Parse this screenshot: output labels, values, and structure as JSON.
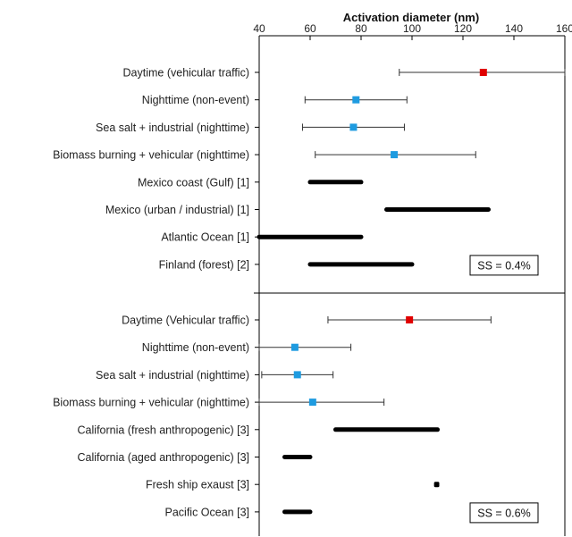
{
  "chart_data": {
    "type": "range",
    "xlabel": "Activation diameter (nm)",
    "xlim": [
      40,
      160
    ],
    "xticks": [
      40,
      60,
      80,
      100,
      120,
      140,
      160
    ],
    "panels": [
      {
        "annotation": "SS = 0.4%",
        "rows": [
          {
            "label": "Daytime (vehicular traffic)",
            "kind": "point",
            "value": 128,
            "low": 95,
            "high": 160,
            "color": "#e00000"
          },
          {
            "label": "Nighttime (non-event)",
            "kind": "point",
            "value": 78,
            "low": 58,
            "high": 98,
            "color": "#1e9be0"
          },
          {
            "label": "Sea salt + industrial (nighttime)",
            "kind": "point",
            "value": 77,
            "low": 57,
            "high": 97,
            "color": "#1e9be0"
          },
          {
            "label": "Biomass burning + vehicular (nighttime)",
            "kind": "point",
            "value": 93,
            "low": 62,
            "high": 125,
            "color": "#1e9be0"
          },
          {
            "label": "Mexico coast (Gulf) [1]",
            "kind": "range",
            "low": 60,
            "high": 80
          },
          {
            "label": "Mexico (urban / industrial) [1]",
            "kind": "range",
            "low": 90,
            "high": 130
          },
          {
            "label": "Atlantic Ocean [1]",
            "kind": "range",
            "low": 40,
            "high": 80
          },
          {
            "label": "Finland (forest) [2]",
            "kind": "range",
            "low": 60,
            "high": 100
          }
        ]
      },
      {
        "annotation": "SS = 0.6%",
        "rows": [
          {
            "label": "Daytime (Vehicular traffic)",
            "kind": "point",
            "value": 99,
            "low": 67,
            "high": 131,
            "color": "#e00000"
          },
          {
            "label": "Nighttime (non-event)",
            "kind": "point",
            "value": 54,
            "low": 40,
            "high": 76,
            "color": "#1e9be0"
          },
          {
            "label": "Sea salt + industrial (nighttime)",
            "kind": "point",
            "value": 55,
            "low": 41,
            "high": 69,
            "color": "#1e9be0"
          },
          {
            "label": "Biomass burning + vehicular (nighttime)",
            "kind": "point",
            "value": 61,
            "low": 40,
            "high": 89,
            "color": "#1e9be0"
          },
          {
            "label": "California (fresh anthropogenic) [3]",
            "kind": "range",
            "low": 70,
            "high": 110
          },
          {
            "label": "California (aged anthropogenic) [3]",
            "kind": "range",
            "low": 50,
            "high": 60
          },
          {
            "label": "Fresh ship exaust [3]",
            "kind": "range",
            "low": 109,
            "high": 110
          },
          {
            "label": "Pacific Ocean [3]",
            "kind": "range",
            "low": 50,
            "high": 60
          }
        ]
      }
    ]
  }
}
